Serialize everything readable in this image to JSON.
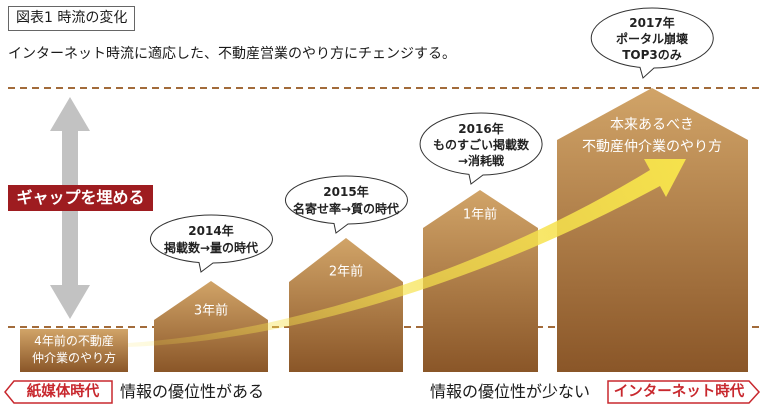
{
  "figure_label": "図表1 時流の変化",
  "subtitle": "インターネット時流に適応した、不動産営業のやり方にチェンジする。",
  "gap_label": "ギャップを埋める",
  "stages": [
    {
      "lines": [
        "4年前の不動産",
        "仲介業のやり方"
      ]
    },
    {
      "lines": [
        "3年前"
      ]
    },
    {
      "lines": [
        "2年前"
      ]
    },
    {
      "lines": [
        "1年前"
      ]
    },
    {
      "lines": [
        "本来あるべき",
        "不動産仲介業のやり方"
      ]
    }
  ],
  "bubbles": [
    {
      "lines": [
        "2014年",
        "掲載数→量の時代"
      ]
    },
    {
      "lines": [
        "2015年",
        "名寄せ率→質の時代"
      ]
    },
    {
      "lines": [
        "2016年",
        "ものすごい掲載数",
        "→消耗戦"
      ]
    },
    {
      "lines": [
        "2017年",
        "ポータル崩壊",
        "TOP3のみ"
      ]
    }
  ],
  "footer": {
    "left_era": "紙媒体時代",
    "left_note": "情報の優位性がある",
    "right_note": "情報の優位性が少ない",
    "right_era": "インターネット時代"
  },
  "colors": {
    "accent_red": "#9e1c20",
    "era_red": "#c8282e",
    "house_top": "#d1a468",
    "house_bottom": "#8a5628",
    "growth_arrow": "#f6e24c",
    "gap_arrow": "#c2c2c2",
    "dashed_line": "#a26b3a"
  }
}
